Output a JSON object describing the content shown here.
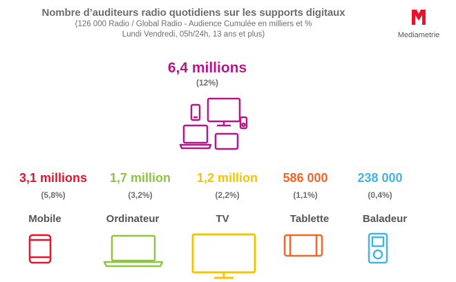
{
  "header": {
    "title": "Nombre d’auditeurs radio quotidiens sur les supports digitaux",
    "subtitle_line1": "(126 000 Radio / Global Radio - Audience Cumulée en milliers et %",
    "subtitle_line2": "Lundi Vendredi, 05h/24h, 13 ans et plus)"
  },
  "logo": {
    "letter": "M",
    "name": "Mediametrie",
    "color": "#e5142c"
  },
  "total": {
    "value": "6,4 millions",
    "pct": "(12%)",
    "color": "#b5178b",
    "icon": "multi-device-icon"
  },
  "chart_data": {
    "type": "table",
    "total": {
      "listeners_millions": 6.4,
      "percent": 12
    },
    "categories": [
      "Mobile",
      "Ordinateur",
      "TV",
      "Tablette",
      "Baladeur"
    ],
    "listeners": [
      3100000,
      1700000,
      1200000,
      586000,
      238000
    ],
    "percent": [
      5.8,
      3.2,
      2.2,
      1.1,
      0.4
    ]
  },
  "categories": [
    {
      "label": "Mobile",
      "value": "3,1 millions",
      "pct": "(5,8%)",
      "color": "#e5142c",
      "icon": "mobile-phone-icon"
    },
    {
      "label": "Ordinateur",
      "value": "1,7 million",
      "pct": "(3,2%)",
      "color": "#8cc63f",
      "icon": "laptop-icon"
    },
    {
      "label": "TV",
      "value": "1,2 million",
      "pct": "(2,2%)",
      "color": "#f5c400",
      "icon": "tv-icon"
    },
    {
      "label": "Tablette",
      "value": "586 000",
      "pct": "(1,1%)",
      "color": "#f26522",
      "icon": "tablet-icon"
    },
    {
      "label": "Baladeur",
      "value": "238 000",
      "pct": "(0,4%)",
      "color": "#3fb6e5",
      "icon": "music-player-icon"
    }
  ]
}
